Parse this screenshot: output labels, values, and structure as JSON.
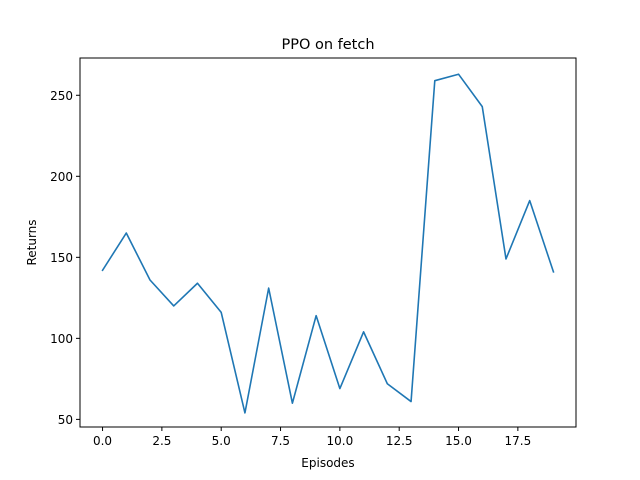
{
  "chart_data": {
    "type": "line",
    "title": "PPO on fetch",
    "xlabel": "Episodes",
    "ylabel": "Returns",
    "xlim": [
      -0.95,
      19.95
    ],
    "ylim": [
      45.3,
      273
    ],
    "xticks": [
      0.0,
      2.5,
      5.0,
      7.5,
      10.0,
      12.5,
      15.0,
      17.5
    ],
    "xtick_labels": [
      "0.0",
      "2.5",
      "5.0",
      "7.5",
      "10.0",
      "12.5",
      "15.0",
      "17.5"
    ],
    "yticks": [
      50,
      100,
      150,
      200,
      250
    ],
    "ytick_labels": [
      "50",
      "100",
      "150",
      "200",
      "250"
    ],
    "grid": false,
    "series": [
      {
        "color": "#1f77b4",
        "x": [
          0,
          1,
          2,
          3,
          4,
          5,
          6,
          7,
          8,
          9,
          10,
          11,
          12,
          13,
          14,
          15,
          16,
          17,
          18,
          19
        ],
        "values": [
          142,
          165,
          136,
          120,
          134,
          116,
          54,
          131,
          60,
          114,
          69,
          104,
          72,
          61,
          259,
          263,
          243,
          149,
          185,
          141
        ]
      }
    ]
  }
}
